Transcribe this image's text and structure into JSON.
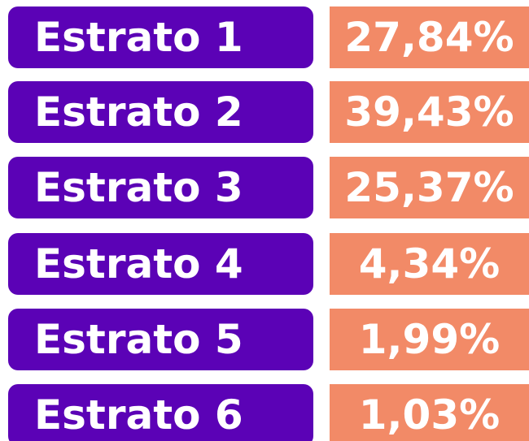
{
  "rows": [
    {
      "label": "Estrato 1",
      "value": "27,84%"
    },
    {
      "label": "Estrato 2",
      "value": "39,43%"
    },
    {
      "label": "Estrato 3",
      "value": "25,37%"
    },
    {
      "label": "Estrato 4",
      "value": "4,34%"
    },
    {
      "label": "Estrato 5",
      "value": "1,99%"
    },
    {
      "label": "Estrato 6",
      "value": "1,03%"
    }
  ]
}
